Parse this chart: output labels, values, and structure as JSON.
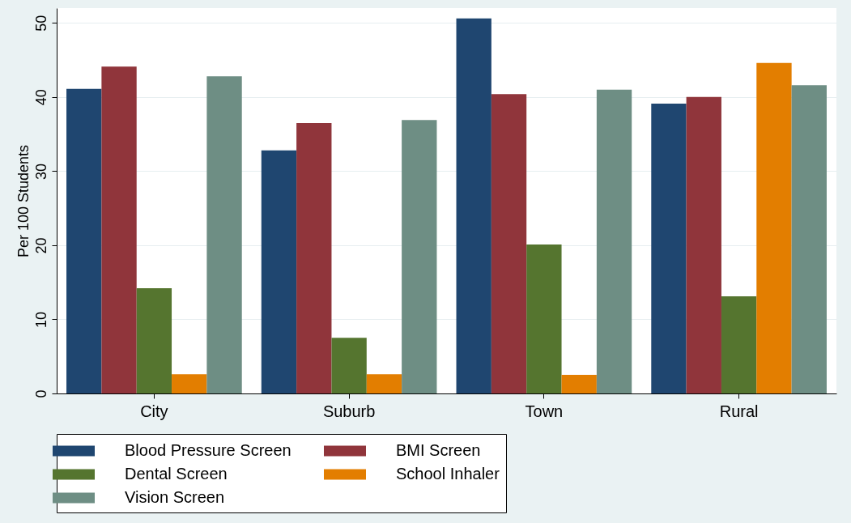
{
  "chart_data": {
    "type": "bar",
    "ylabel": "Per 100 Students",
    "categories": [
      "City",
      "Suburb",
      "Town",
      "Rural"
    ],
    "series": [
      {
        "name": "Blood Pressure Screen",
        "color": "#1f4670",
        "values": [
          41.1,
          32.8,
          50.6,
          39.1
        ]
      },
      {
        "name": "BMI Screen",
        "color": "#90353b",
        "values": [
          44.1,
          36.5,
          40.4,
          40.0
        ]
      },
      {
        "name": "Dental Screen",
        "color": "#55752f",
        "values": [
          14.2,
          7.5,
          20.1,
          13.1
        ]
      },
      {
        "name": "School Inhaler",
        "color": "#e37e00",
        "values": [
          2.6,
          2.6,
          2.5,
          44.6
        ]
      },
      {
        "name": "Vision Screen",
        "color": "#6e8e84",
        "values": [
          42.8,
          36.9,
          41.0,
          41.6
        ]
      }
    ],
    "ylim": [
      0,
      52
    ],
    "yticks": [
      0,
      10,
      20,
      30,
      40,
      50
    ],
    "grid": "y",
    "legend": "bottom"
  }
}
